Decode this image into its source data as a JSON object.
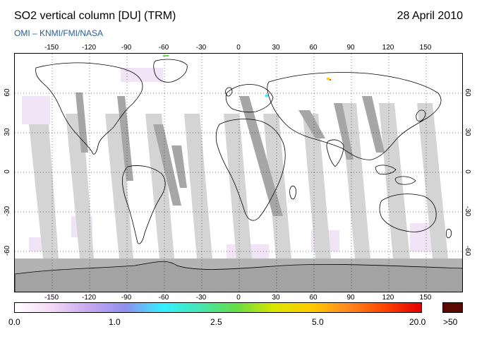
{
  "title": "SO2 vertical column [DU] (TRM)",
  "date": "28 April 2010",
  "credit": "OMI  –  KNMI/FMI/NASA",
  "lon_ticks": [
    "-150",
    "-120",
    "-90",
    "-60",
    "-30",
    "0",
    "30",
    "60",
    "90",
    "120",
    "150"
  ],
  "lat_ticks": [
    "60",
    "30",
    "0",
    "-30",
    "-60"
  ],
  "colorbar": {
    "labels": [
      "0.0",
      "1.0",
      "2.5",
      "5.0",
      "20.0"
    ],
    "overflow_label": ">50",
    "overflow_color": "#5a0a00",
    "colors": [
      "#ffffff",
      "#f3d8f6",
      "#c8a8f0",
      "#8f8ff0",
      "#33f0ff",
      "#44e6b4",
      "#66dd44",
      "#d8e600",
      "#ffcc00",
      "#ff8a20",
      "#ff4400",
      "#e00000"
    ]
  },
  "map": {
    "ocean_color": "#ffffff",
    "swath_color_light": "#d4d4d4",
    "swath_color_dark": "#a6a6a6",
    "polar_color": "#b3b3b3",
    "antarctica_color": "#a3a3a3"
  }
}
